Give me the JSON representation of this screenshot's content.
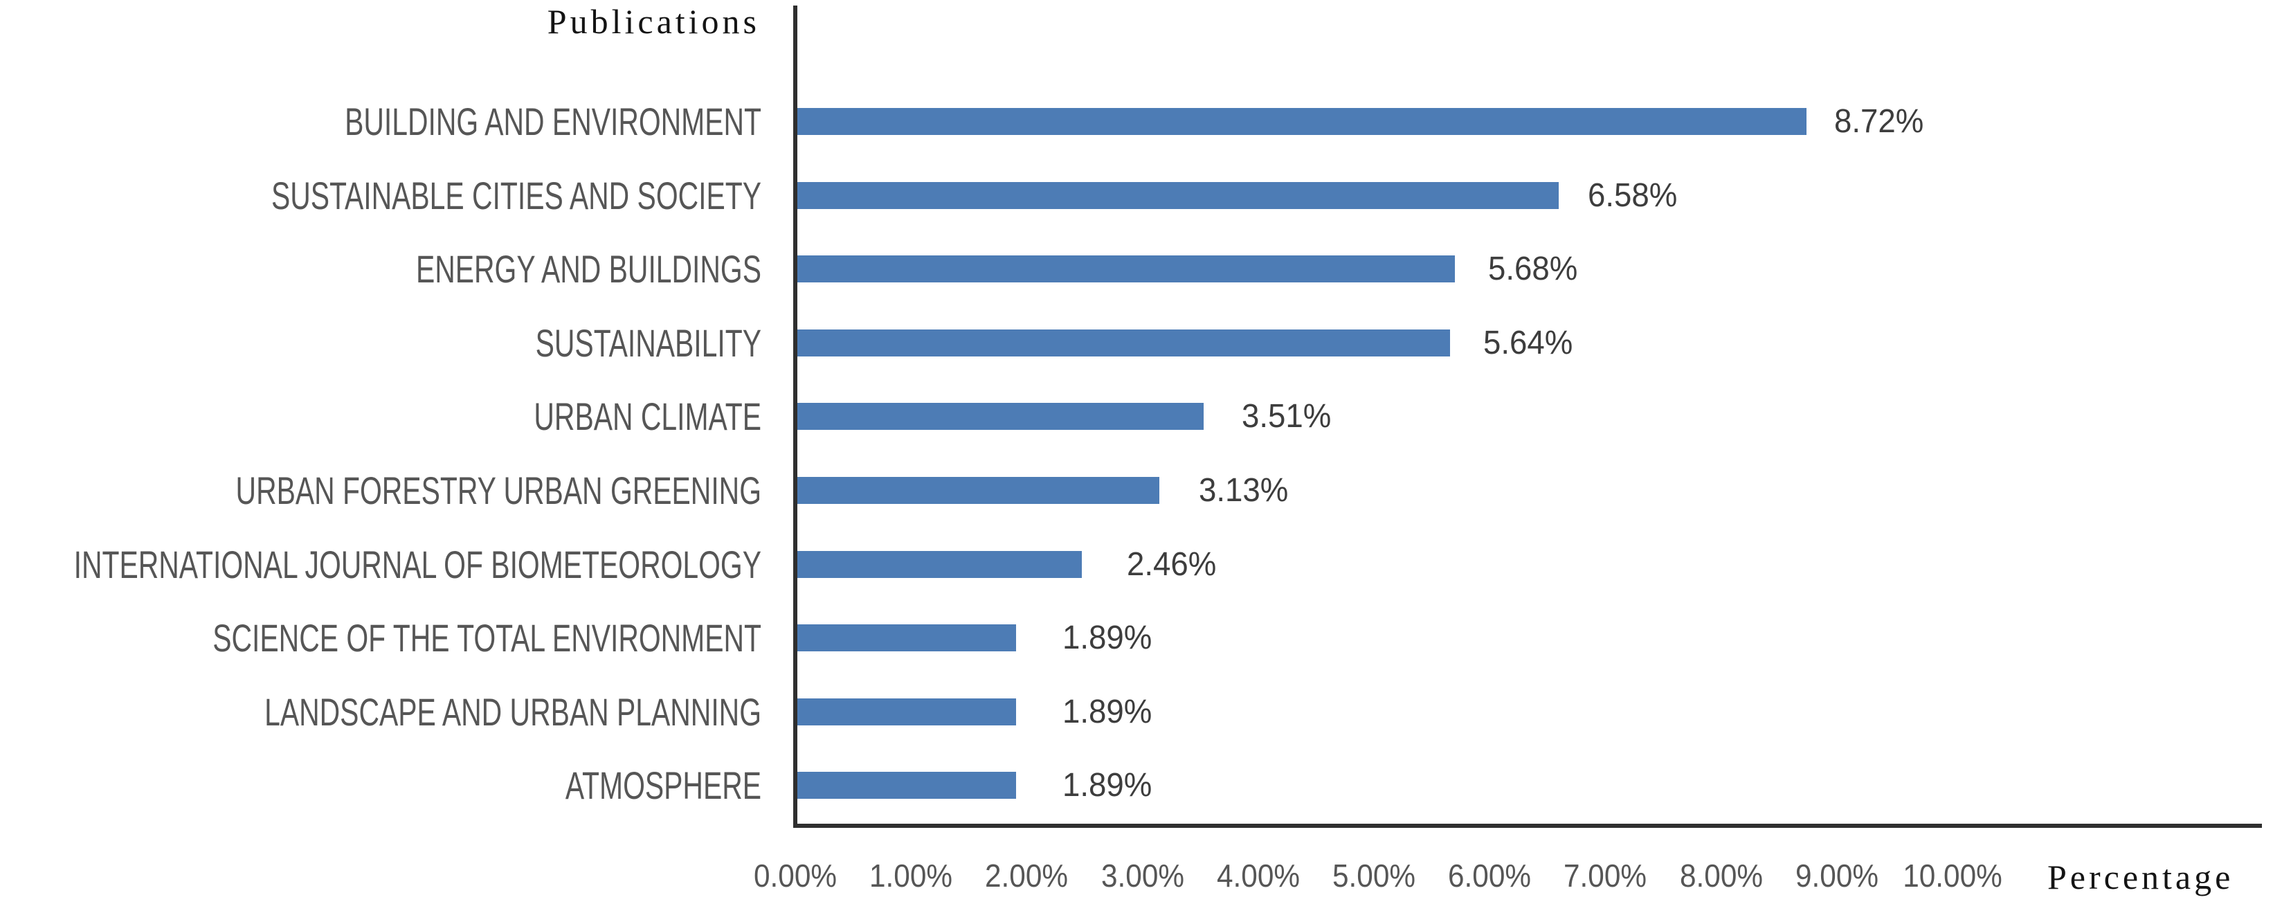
{
  "chart_data": {
    "type": "bar",
    "orientation": "horizontal",
    "title": "Publications",
    "xlabel": "Percentage",
    "ylabel": "",
    "categories": [
      "BUILDING AND ENVIRONMENT",
      "SUSTAINABLE CITIES AND SOCIETY",
      "ENERGY AND BUILDINGS",
      "SUSTAINABILITY",
      "URBAN CLIMATE",
      "URBAN FORESTRY URBAN GREENING",
      "INTERNATIONAL JOURNAL OF BIOMETEOROLOGY",
      "SCIENCE OF THE TOTAL ENVIRONMENT",
      "LANDSCAPE AND URBAN PLANNING",
      "ATMOSPHERE"
    ],
    "values": [
      8.72,
      6.58,
      5.68,
      5.64,
      3.51,
      3.13,
      2.46,
      1.89,
      1.89,
      1.89
    ],
    "value_labels": [
      "8.72%",
      "6.58%",
      "5.68%",
      "5.64%",
      "3.51%",
      "3.13%",
      "2.46%",
      "1.89%",
      "1.89%",
      "1.89%"
    ],
    "x_tick_labels": [
      "0.00%",
      "1.00%",
      "2.00%",
      "3.00%",
      "4.00%",
      "5.00%",
      "6.00%",
      "7.00%",
      "8.00%",
      "9.00%",
      "10.00%"
    ],
    "xlim": [
      0,
      10
    ],
    "grid": false,
    "legend": false,
    "bar_color": "#4d7cb5",
    "axis_color": "#2f2f2f",
    "value_label_color": "#3d3d3d",
    "category_label_color": "#565656",
    "tick_label_color": "#565656",
    "title_color": "#141414"
  }
}
